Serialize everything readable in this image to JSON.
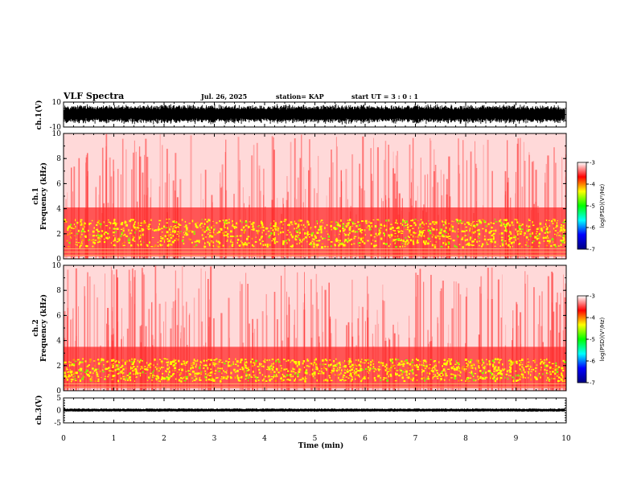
{
  "header": {
    "title": "VLF Spectra",
    "date": "Jul. 26, 2025",
    "station": "station= KAP",
    "start": "start UT =  3 : 0 : 1"
  },
  "chart_data": [
    {
      "id": "ch1-waveform",
      "type": "line",
      "ylabel": "ch.1(V)",
      "ylim": [
        -10,
        10
      ],
      "yticks": [
        "10",
        "-10"
      ],
      "xlim": [
        0,
        10
      ],
      "description_values": {
        "typical_envelope_V": [
          -7,
          7
        ]
      }
    },
    {
      "id": "ch1-spectrogram",
      "type": "heatmap",
      "ylabel": "ch.1 Frequency (kHz)",
      "ylim": [
        0,
        10
      ],
      "yticks": [
        "0",
        "2",
        "4",
        "6",
        "8",
        "10"
      ],
      "xlim": [
        0,
        10
      ],
      "strong_band_kHz": [
        1.0,
        3.2
      ],
      "colorbar": {
        "label": "log(PSD)(V²/Hz)",
        "range": [
          -7,
          -3
        ],
        "ticks": [
          "-3",
          "-4",
          "-5",
          "-6",
          "-7"
        ],
        "colors": [
          "#000080",
          "#0000ff",
          "#00ffff",
          "#00ff00",
          "#ffff00",
          "#ff0000",
          "#ffffff"
        ]
      }
    },
    {
      "id": "ch2-spectrogram",
      "type": "heatmap",
      "ylabel": "ch.2 Frequency (kHz)",
      "ylim": [
        0,
        10
      ],
      "yticks": [
        "0",
        "2",
        "4",
        "6",
        "8",
        "10"
      ],
      "xlim": [
        0,
        10
      ],
      "strong_band_kHz": [
        0.8,
        2.6
      ],
      "colorbar": {
        "label": "log(PSD)(V²/Hz)",
        "range": [
          -7,
          -3
        ],
        "ticks": [
          "-3",
          "-4",
          "-5",
          "-6",
          "-7"
        ],
        "colors": [
          "#000080",
          "#0000ff",
          "#00ffff",
          "#00ff00",
          "#ffff00",
          "#ff0000",
          "#ffffff"
        ]
      }
    },
    {
      "id": "ch3-waveform",
      "type": "line",
      "ylabel": "ch.3(V)",
      "ylim": [
        -5,
        5
      ],
      "yticks": [
        "5",
        "0",
        "-5"
      ],
      "xlim": [
        0,
        10
      ],
      "description_values": {
        "typical_envelope_V": [
          -0.5,
          0.8
        ]
      }
    }
  ],
  "xaxis": {
    "label": "Time (min)",
    "ticks": [
      "0",
      "1",
      "2",
      "3",
      "4",
      "5",
      "6",
      "7",
      "8",
      "9",
      "10"
    ],
    "range": [
      0,
      10
    ]
  }
}
